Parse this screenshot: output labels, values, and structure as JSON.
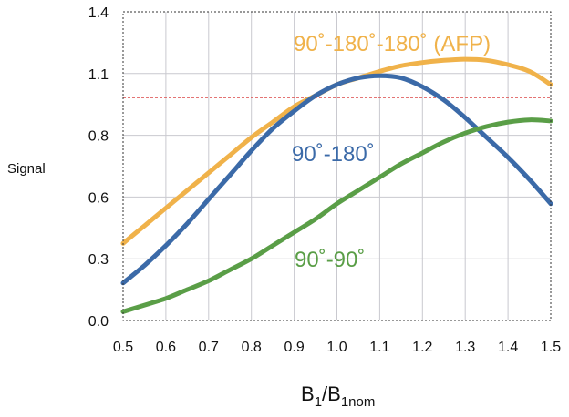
{
  "chart_data": {
    "type": "line",
    "ylabel": "Signal",
    "xlabel": {
      "main": "B",
      "sub1": "1",
      "slash": "/B",
      "sub2": "1nom"
    },
    "xlim": [
      0.5,
      1.5
    ],
    "ylim": [
      0.0,
      1.4
    ],
    "x_ticks": [
      "0.5",
      "0.6",
      "0.7",
      "0.8",
      "0.9",
      "1.0",
      "1.1",
      "1.2",
      "1.3",
      "1.4",
      "1.5"
    ],
    "y_ticks": [
      {
        "value": 0.0,
        "label": "0.0"
      },
      {
        "value": 0.28,
        "label": "0.3"
      },
      {
        "value": 0.56,
        "label": "0.6"
      },
      {
        "value": 0.84,
        "label": "0.8"
      },
      {
        "value": 1.12,
        "label": "1.1"
      },
      {
        "value": 1.4,
        "label": "1.4"
      }
    ],
    "grid": true,
    "reference_line": {
      "y": 1.01,
      "color": "#e06060",
      "style": "dashed"
    },
    "series": [
      {
        "name": "90˚-180˚-180˚ (AFP)",
        "color": "#f0b24a",
        "x": [
          0.5,
          0.55,
          0.6,
          0.65,
          0.7,
          0.75,
          0.8,
          0.85,
          0.9,
          0.95,
          1.0,
          1.05,
          1.1,
          1.15,
          1.2,
          1.25,
          1.3,
          1.35,
          1.4,
          1.45,
          1.5
        ],
        "y": [
          0.35,
          0.43,
          0.51,
          0.59,
          0.67,
          0.75,
          0.83,
          0.9,
          0.97,
          1.02,
          1.07,
          1.1,
          1.13,
          1.155,
          1.17,
          1.18,
          1.185,
          1.18,
          1.16,
          1.13,
          1.07
        ]
      },
      {
        "name": "90˚-180˚",
        "color": "#3b6aa8",
        "x": [
          0.5,
          0.55,
          0.6,
          0.65,
          0.7,
          0.75,
          0.8,
          0.85,
          0.9,
          0.95,
          1.0,
          1.05,
          1.1,
          1.15,
          1.2,
          1.25,
          1.3,
          1.35,
          1.4,
          1.45,
          1.5
        ],
        "y": [
          0.17,
          0.25,
          0.34,
          0.44,
          0.55,
          0.66,
          0.77,
          0.87,
          0.95,
          1.02,
          1.07,
          1.1,
          1.11,
          1.1,
          1.06,
          1.0,
          0.92,
          0.83,
          0.74,
          0.64,
          0.53
        ]
      },
      {
        "name": "90˚-90˚",
        "color": "#5a9e47",
        "x": [
          0.5,
          0.55,
          0.6,
          0.65,
          0.7,
          0.75,
          0.8,
          0.85,
          0.9,
          0.95,
          1.0,
          1.05,
          1.1,
          1.15,
          1.2,
          1.25,
          1.3,
          1.35,
          1.4,
          1.45,
          1.5
        ],
        "y": [
          0.04,
          0.07,
          0.1,
          0.14,
          0.18,
          0.23,
          0.28,
          0.34,
          0.4,
          0.46,
          0.53,
          0.59,
          0.65,
          0.71,
          0.76,
          0.81,
          0.85,
          0.88,
          0.9,
          0.91,
          0.905
        ]
      }
    ]
  }
}
